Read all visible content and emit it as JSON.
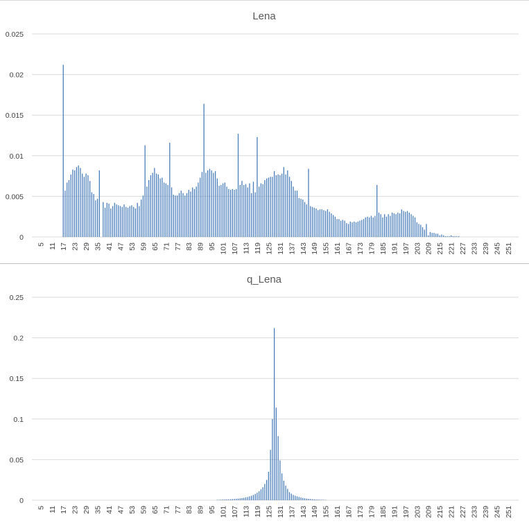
{
  "chart_data": [
    {
      "type": "bar",
      "title": "Lena",
      "color": "#4a7ebb",
      "xlabel": "",
      "ylabel": "",
      "ylim": [
        0,
        0.025
      ],
      "yticks": [
        "0",
        "0.005",
        "0.01",
        "0.015",
        "0.02",
        "0.025"
      ],
      "xlim": [
        1,
        256
      ],
      "xticks": [
        5,
        11,
        17,
        23,
        29,
        35,
        41,
        47,
        53,
        59,
        65,
        71,
        77,
        83,
        89,
        95,
        101,
        107,
        113,
        119,
        125,
        131,
        137,
        143,
        149,
        155,
        161,
        167,
        173,
        179,
        185,
        191,
        197,
        203,
        209,
        215,
        221,
        227,
        233,
        239,
        245,
        251
      ],
      "grid": true,
      "legend": "none",
      "x": [
        17,
        18,
        19,
        20,
        21,
        22,
        23,
        24,
        25,
        26,
        27,
        28,
        29,
        30,
        31,
        32,
        33,
        34,
        35,
        36,
        38,
        39,
        40,
        41,
        42,
        43,
        44,
        45,
        46,
        47,
        48,
        49,
        50,
        51,
        52,
        53,
        54,
        55,
        56,
        57,
        58,
        59,
        60,
        61,
        62,
        63,
        64,
        65,
        66,
        67,
        68,
        69,
        70,
        71,
        72,
        73,
        74,
        75,
        76,
        77,
        78,
        79,
        80,
        81,
        82,
        83,
        84,
        85,
        86,
        87,
        88,
        89,
        90,
        91,
        92,
        93,
        94,
        95,
        96,
        97,
        98,
        99,
        100,
        101,
        102,
        103,
        104,
        105,
        106,
        107,
        108,
        109,
        110,
        111,
        112,
        113,
        114,
        115,
        116,
        117,
        118,
        119,
        120,
        121,
        122,
        123,
        124,
        125,
        126,
        127,
        128,
        129,
        130,
        131,
        132,
        133,
        134,
        135,
        136,
        137,
        138,
        139,
        140,
        141,
        142,
        143,
        144,
        145,
        146,
        147,
        148,
        149,
        150,
        151,
        152,
        153,
        154,
        155,
        156,
        157,
        158,
        159,
        160,
        161,
        162,
        163,
        164,
        165,
        166,
        167,
        168,
        169,
        170,
        171,
        172,
        173,
        174,
        175,
        176,
        177,
        178,
        179,
        180,
        181,
        182,
        183,
        184,
        185,
        186,
        187,
        188,
        189,
        190,
        191,
        192,
        193,
        194,
        195,
        196,
        197,
        198,
        199,
        200,
        201,
        202,
        203,
        204,
        205,
        206,
        207,
        208,
        209,
        210,
        211,
        212,
        213,
        214,
        215,
        216,
        217,
        218,
        219,
        220,
        221,
        222,
        223,
        224,
        225
      ],
      "y": [
        0.0212,
        0.0057,
        0.0067,
        0.007,
        0.0077,
        0.0083,
        0.0082,
        0.0086,
        0.0088,
        0.0085,
        0.0078,
        0.0074,
        0.0078,
        0.0076,
        0.0069,
        0.0055,
        0.0053,
        0.0045,
        0.0047,
        0.0082,
        0.0043,
        0.0036,
        0.0042,
        0.0041,
        0.0035,
        0.0038,
        0.0042,
        0.004,
        0.0039,
        0.0038,
        0.0037,
        0.004,
        0.0037,
        0.0036,
        0.0038,
        0.0039,
        0.0037,
        0.0035,
        0.0042,
        0.0038,
        0.0046,
        0.0051,
        0.0113,
        0.0062,
        0.007,
        0.0076,
        0.0079,
        0.0085,
        0.0078,
        0.0077,
        0.0072,
        0.0073,
        0.0067,
        0.0066,
        0.0064,
        0.0116,
        0.0061,
        0.0052,
        0.0051,
        0.0051,
        0.0054,
        0.0057,
        0.0054,
        0.0051,
        0.0054,
        0.0058,
        0.0056,
        0.0061,
        0.0059,
        0.0062,
        0.0067,
        0.0073,
        0.008,
        0.0164,
        0.0079,
        0.0082,
        0.0084,
        0.0082,
        0.0079,
        0.0081,
        0.0072,
        0.0063,
        0.0064,
        0.0066,
        0.0067,
        0.0062,
        0.0059,
        0.0058,
        0.0059,
        0.0058,
        0.0059,
        0.0127,
        0.0064,
        0.0069,
        0.0064,
        0.0065,
        0.0061,
        0.0066,
        0.0054,
        0.0068,
        0.0055,
        0.0123,
        0.0062,
        0.0066,
        0.0065,
        0.007,
        0.0072,
        0.0073,
        0.0074,
        0.0074,
        0.0081,
        0.0076,
        0.0077,
        0.0076,
        0.0078,
        0.0086,
        0.0077,
        0.0082,
        0.0074,
        0.0069,
        0.0062,
        0.0057,
        0.0057,
        0.0048,
        0.0047,
        0.0046,
        0.0043,
        0.004,
        0.0084,
        0.0038,
        0.0037,
        0.0036,
        0.0035,
        0.0033,
        0.0034,
        0.0034,
        0.0033,
        0.0032,
        0.0034,
        0.0031,
        0.0029,
        0.0027,
        0.0025,
        0.0022,
        0.0022,
        0.002,
        0.0021,
        0.002,
        0.0017,
        0.0016,
        0.0019,
        0.0018,
        0.0019,
        0.0018,
        0.0019,
        0.002,
        0.0021,
        0.0022,
        0.0024,
        0.0025,
        0.0024,
        0.0026,
        0.0024,
        0.0026,
        0.0064,
        0.003,
        0.0028,
        0.0024,
        0.0028,
        0.0025,
        0.0028,
        0.0026,
        0.003,
        0.0029,
        0.0028,
        0.003,
        0.0029,
        0.0034,
        0.0032,
        0.0031,
        0.0032,
        0.003,
        0.0028,
        0.0026,
        0.0024,
        0.0018,
        0.0016,
        0.0015,
        0.0012,
        0.0009,
        0.0016,
        0.0002,
        0.0006,
        0.0005,
        0.0005,
        0.0004,
        0.0004,
        0.0002,
        0.0003,
        0.0002,
        0.0001,
        0.0001,
        0.0001,
        0.0002,
        0.0001,
        0.0001,
        0.0001,
        0.0001
      ]
    },
    {
      "type": "bar",
      "title": "q_Lena",
      "color": "#4a7ebb",
      "xlabel": "",
      "ylabel": "",
      "ylim": [
        0,
        0.25
      ],
      "yticks": [
        "0",
        "0.05",
        "0.1",
        "0.15",
        "0.2",
        "0.25"
      ],
      "xlim": [
        1,
        256
      ],
      "xticks": [
        5,
        11,
        17,
        23,
        29,
        35,
        41,
        47,
        53,
        59,
        65,
        71,
        77,
        83,
        89,
        95,
        101,
        107,
        113,
        119,
        125,
        131,
        137,
        143,
        149,
        155,
        161,
        167,
        173,
        179,
        185,
        191,
        197,
        203,
        209,
        215,
        221,
        227,
        233,
        239,
        245,
        251
      ],
      "grid": true,
      "legend": "none",
      "x": [
        98,
        99,
        100,
        101,
        102,
        103,
        104,
        105,
        106,
        107,
        108,
        109,
        110,
        111,
        112,
        113,
        114,
        115,
        116,
        117,
        118,
        119,
        120,
        121,
        122,
        123,
        124,
        125,
        126,
        127,
        128,
        129,
        130,
        131,
        132,
        133,
        134,
        135,
        136,
        137,
        138,
        139,
        140,
        141,
        142,
        143,
        144,
        145,
        146,
        147,
        148,
        149,
        150,
        151,
        152,
        153,
        154,
        155
      ],
      "y": [
        0.0005,
        0.0006,
        0.0007,
        0.0008,
        0.0009,
        0.001,
        0.0011,
        0.0012,
        0.0014,
        0.0016,
        0.0018,
        0.002,
        0.0023,
        0.0026,
        0.003,
        0.0035,
        0.004,
        0.0047,
        0.0055,
        0.0065,
        0.0078,
        0.0093,
        0.011,
        0.0135,
        0.016,
        0.02,
        0.025,
        0.035,
        0.062,
        0.1,
        0.212,
        0.114,
        0.079,
        0.049,
        0.033,
        0.024,
        0.018,
        0.014,
        0.01,
        0.008,
        0.0065,
        0.0055,
        0.0048,
        0.004,
        0.0034,
        0.0028,
        0.0024,
        0.002,
        0.0017,
        0.0015,
        0.0013,
        0.0011,
        0.0009,
        0.0008,
        0.0007,
        0.0006,
        0.0005,
        0.0004
      ]
    }
  ]
}
